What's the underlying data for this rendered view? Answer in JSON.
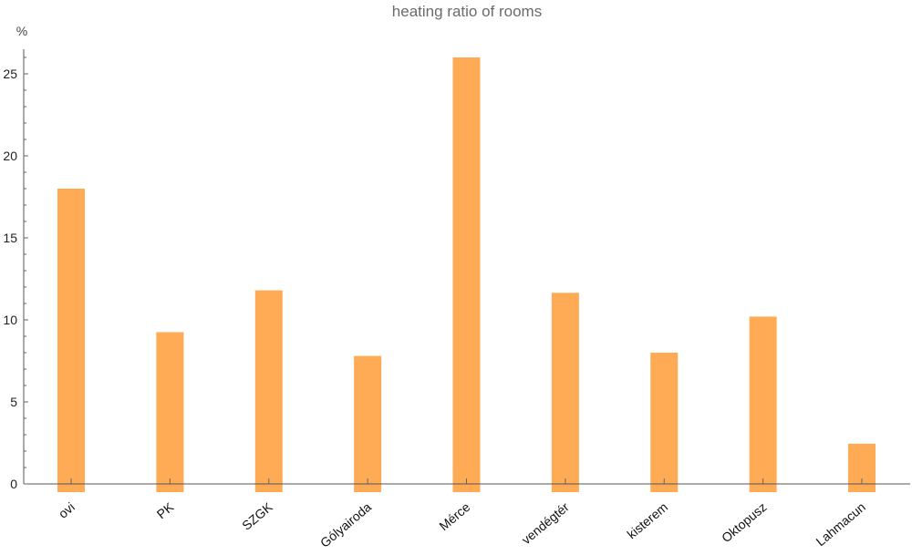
{
  "chart_data": {
    "type": "bar",
    "title": "heating ratio of rooms",
    "ylabel": "%",
    "xlabel": "",
    "categories": [
      "ovi",
      "PK",
      "SZGK",
      "Gólyairoda",
      "Mérce",
      "vendégtér",
      "kisterem",
      "Oktopusz",
      "Lahmacun"
    ],
    "values": [
      18.0,
      9.25,
      11.8,
      7.8,
      26.0,
      11.65,
      8.0,
      10.2,
      2.45
    ],
    "ylim": [
      0,
      26.5
    ],
    "yticks": [
      0,
      5,
      10,
      15,
      20,
      25
    ],
    "bar_color": "#ffaa55",
    "grid": false,
    "legend": "none"
  }
}
